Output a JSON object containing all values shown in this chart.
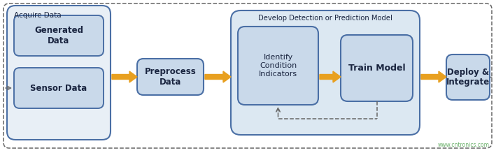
{
  "bg_color": "#ffffff",
  "box_fill": "#c9d9ea",
  "box_stroke": "#4a6fa5",
  "group_fill": "#dce8f2",
  "dashed_stroke": "#666666",
  "arrow_color": "#e8a020",
  "watermark_color": "#6ab06a",
  "watermark_text": "www.cntronics.com",
  "acquire_label": "Acquire Data",
  "gen_data_label": "Generated\nData",
  "sensor_label": "Sensor Data",
  "preprocess_label": "Preprocess\nData",
  "develop_label": "Develop Detection or Prediction Model",
  "identify_label": "Identify\nCondition\nIndicators",
  "train_label": "Train Model",
  "deploy_label": "Deploy &\nIntegrate",
  "figsize": [
    7.09,
    2.19
  ],
  "dpi": 100
}
